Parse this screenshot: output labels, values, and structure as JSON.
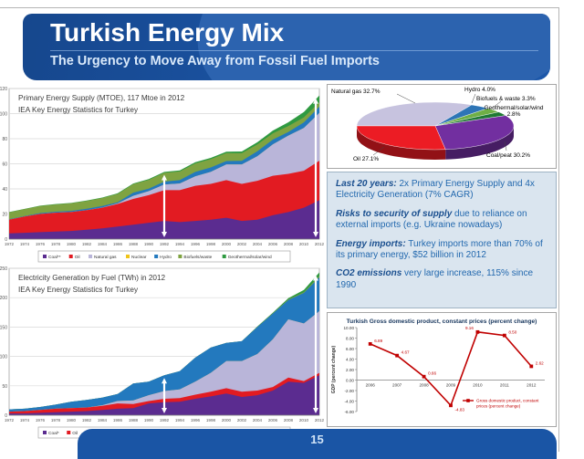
{
  "header": {
    "title": "Turkish Energy Mix",
    "subtitle": "The Urgency to Move Away from Fossil Fuel Imports"
  },
  "slide": {
    "page_number": "15"
  },
  "facts": [
    {
      "lead": "Last 20 years:",
      "rest": " 2x Primary Energy Supply and 4x Electricity Generation (7% CAGR)"
    },
    {
      "lead": "Risks to security of supply",
      "rest": " due to reliance on external imports (e.g. Ukraine nowadays)"
    },
    {
      "lead": "Energy imports:",
      "rest": " Turkey imports more than 70% of its primary energy, $52 billion in 2012"
    },
    {
      "lead": "CO2 emissions",
      "rest": " very large increase, 115% since 1990"
    }
  ],
  "chart_data": [
    {
      "id": "primary-energy",
      "type": "area",
      "title": "Primary Energy Supply (MTOE), 117 Mtoe in 2012",
      "subtitle": "IEA Key Energy Statistics for Turkey",
      "x": [
        1972,
        1974,
        1976,
        1978,
        1980,
        1982,
        1984,
        1986,
        1988,
        1990,
        1992,
        1994,
        1996,
        1998,
        2000,
        2002,
        2004,
        2006,
        2008,
        2010,
        2012
      ],
      "ylim": [
        0,
        120
      ],
      "ytick_step": 20,
      "arrow_years": [
        1992,
        2012
      ],
      "series": [
        {
          "name": "Coal**",
          "color": "#5B2C90",
          "values": [
            4.5,
            5,
            5.5,
            6,
            6.5,
            7.5,
            8.5,
            10,
            11.5,
            13,
            14.5,
            13.5,
            14.5,
            15.5,
            17,
            14.5,
            15.5,
            19,
            21.5,
            25,
            31
          ]
        },
        {
          "name": "Oil",
          "color": "#E21B22",
          "values": [
            11,
            13,
            14.5,
            15,
            15,
            15.5,
            16.5,
            18,
            20.5,
            22,
            24.5,
            25.5,
            28,
            28.5,
            30,
            29.5,
            31,
            31.5,
            30.5,
            29.5,
            31.5
          ]
        },
        {
          "name": "Natural gas",
          "color": "#B9B5D9",
          "values": [
            0,
            0,
            0,
            0,
            0,
            0,
            0.1,
            0.4,
            2.5,
            3.2,
            4.5,
            5.3,
            7.5,
            9.5,
            12.5,
            15.5,
            19.5,
            25,
            30.5,
            34,
            38
          ]
        },
        {
          "name": "Nuclear",
          "color": "#F0C419",
          "values": [
            0,
            0,
            0,
            0,
            0,
            0,
            0,
            0,
            0,
            0,
            0,
            0,
            0,
            0,
            0,
            0,
            0,
            0,
            0,
            0,
            0
          ]
        },
        {
          "name": "Hydro",
          "color": "#2379BE",
          "values": [
            0.3,
            0.3,
            0.7,
            0.8,
            1,
            1.2,
            1.2,
            1,
            2.5,
            2,
            2.3,
            2.7,
            3.5,
            3.6,
            2.7,
            2.9,
            4,
            3.8,
            2.9,
            4.5,
            5
          ]
        },
        {
          "name": "Biofuels/waste",
          "color": "#7FA341",
          "values": [
            5.5,
            5.6,
            5.7,
            5.8,
            6,
            6.2,
            6.4,
            6.6,
            6.8,
            7,
            7,
            6.9,
            6.8,
            6.6,
            6.3,
            6,
            5.5,
            5,
            4.7,
            4,
            3.5
          ]
        },
        {
          "name": "Geothermal/solar/wind",
          "color": "#2F9A41",
          "values": [
            0.2,
            0.2,
            0.2,
            0.3,
            0.3,
            0.4,
            0.4,
            0.5,
            0.5,
            0.6,
            0.7,
            0.8,
            0.9,
            1,
            1.2,
            1.4,
            1.7,
            2.2,
            3,
            4.2,
            5.5
          ]
        }
      ]
    },
    {
      "id": "electricity",
      "type": "area",
      "title": "Electricity Generation by Fuel (TWh) in 2012",
      "subtitle": "IEA Key Energy Statistics for Turkey",
      "x": [
        1972,
        1974,
        1976,
        1978,
        1980,
        1982,
        1984,
        1986,
        1988,
        1990,
        1992,
        1994,
        1996,
        1998,
        2000,
        2002,
        2004,
        2006,
        2008,
        2010,
        2012
      ],
      "ylim": [
        0,
        250
      ],
      "ytick_step": 50,
      "arrow_years": [
        1992,
        2012
      ],
      "series": [
        {
          "name": "Coal*",
          "color": "#5B2C90",
          "values": [
            3,
            3,
            4,
            5,
            6,
            7,
            9,
            11,
            12,
            20,
            22,
            23,
            28,
            32,
            37,
            31,
            34,
            42,
            57,
            55,
            68
          ]
        },
        {
          "name": "Oil",
          "color": "#E21B22",
          "values": [
            3,
            4,
            5,
            6,
            6,
            6,
            7,
            9,
            7,
            4,
            6,
            6,
            7,
            8,
            9,
            9,
            8,
            6,
            7,
            3,
            4
          ]
        },
        {
          "name": "Natural gas",
          "color": "#B9B5D9",
          "values": [
            0,
            0,
            0,
            0,
            0,
            0,
            1,
            4,
            6,
            10,
            13,
            15,
            22,
            32,
            46,
            52,
            62,
            81,
            99,
            98,
            105
          ]
        },
        {
          "name": "Nuclear",
          "color": "#F0C419",
          "values": [
            0,
            0,
            0,
            0,
            0,
            0,
            0,
            0,
            0,
            0,
            0,
            0,
            0,
            0,
            0,
            0,
            0,
            0,
            0,
            0,
            0
          ]
        },
        {
          "name": "Hydro",
          "color": "#2379BE",
          "values": [
            4,
            4,
            5,
            7,
            11,
            13,
            13,
            12,
            29,
            23,
            27,
            31,
            41,
            43,
            31,
            34,
            46,
            44,
            33,
            52,
            58
          ]
        },
        {
          "name": "Biofuels/waste",
          "color": "#7FA341",
          "values": [
            0,
            0,
            0,
            0,
            0,
            0,
            0,
            0,
            0,
            0,
            0,
            0,
            0,
            0,
            0,
            0,
            0.5,
            0.5,
            1,
            1.5,
            2
          ]
        },
        {
          "name": "Geothermal/solar/wind",
          "color": "#2F9A41",
          "values": [
            0,
            0,
            0,
            0,
            0,
            0,
            0,
            0,
            0,
            0,
            0,
            0,
            0,
            0,
            0,
            0,
            0.5,
            1,
            2,
            3.5,
            6
          ]
        }
      ]
    },
    {
      "id": "energy-mix-pie",
      "type": "pie",
      "start_angle_deg": 180,
      "slices": [
        {
          "label": "Natural gas 32.7%",
          "value": 32.7,
          "color": "#C7C3DF"
        },
        {
          "label": "Hydro 4.0%",
          "value": 4.0,
          "color": "#2E75B6"
        },
        {
          "label": "Biofuels & waste 3.3%",
          "value": 3.3,
          "color": "#6FAF46"
        },
        {
          "label": "Geothermal/solar/wind 2.8%",
          "value": 2.8,
          "color": "#1F7A33"
        },
        {
          "label": "Coal/peat 30.2%",
          "value": 30.2,
          "color": "#722FA0"
        },
        {
          "label": "Oil 27.1%",
          "value": 27.1,
          "color": "#EC1C24"
        }
      ]
    },
    {
      "id": "gdp",
      "type": "line",
      "title": "Turkish Gross domestic product, constant prices (percent change)",
      "ylabel": "GDP (percent change)",
      "categories": [
        2006,
        2007,
        2008,
        2009,
        2010,
        2011,
        2012
      ],
      "values": [
        6.89,
        4.67,
        0.66,
        -4.83,
        9.16,
        8.5,
        2.62
      ],
      "labels": [
        "6.89",
        "4.67",
        "0.66",
        "-4.83",
        "9.16",
        "8.50",
        "2.62"
      ],
      "ylim": [
        -6,
        10
      ],
      "ytick_step": 2,
      "line_color": "#C00000",
      "legend_lines": [
        "Gross domestic product, constant",
        "prices (percent change)"
      ]
    }
  ]
}
